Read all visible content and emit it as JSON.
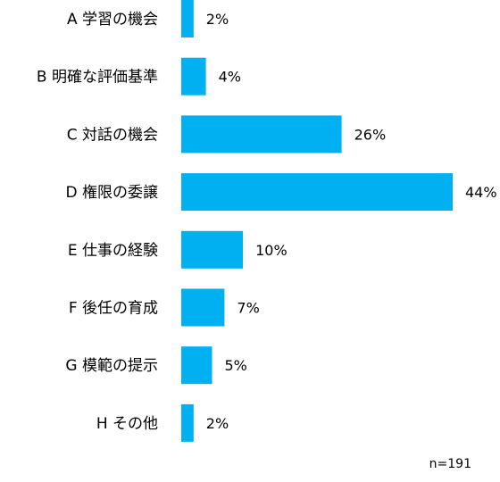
{
  "chart_data": {
    "type": "bar",
    "orientation": "horizontal",
    "categories": [
      "A 学習の機会",
      "B 明確な評価基準",
      "C 対話の機会",
      "D 権限の委譲",
      "E 仕事の経験",
      "F 後任の育成",
      "G 模範の提示",
      "H その他"
    ],
    "values": [
      2,
      4,
      26,
      44,
      10,
      7,
      5,
      2
    ],
    "value_labels": [
      "2%",
      "4%",
      "26%",
      "44%",
      "10%",
      "7%",
      "5%",
      "2%"
    ],
    "unit": "%",
    "xlim": [
      0,
      44
    ],
    "grid": false,
    "bar_color": "#00B0F0",
    "note": "n=191"
  }
}
